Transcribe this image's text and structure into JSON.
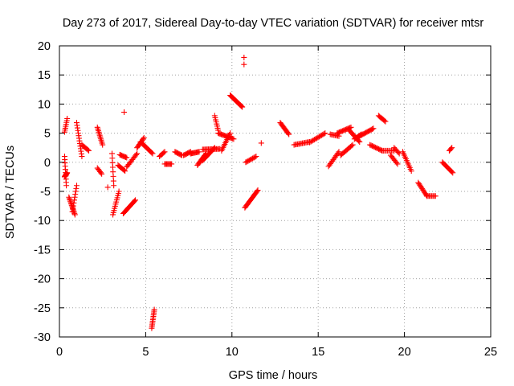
{
  "chart_data": {
    "type": "scatter",
    "title": "Day 273 of 2017, Sidereal Day-to-day VTEC variation (SDTVAR) for receiver mtsr",
    "xlabel": "GPS time / hours",
    "ylabel": "SDTVAR / TECUs",
    "xlim": [
      0,
      25
    ],
    "ylim": [
      -30,
      20
    ],
    "xticks": [
      0,
      5,
      10,
      15,
      20,
      25
    ],
    "yticks": [
      20,
      15,
      10,
      5,
      0,
      -5,
      -10,
      -15,
      -20,
      -25,
      -30
    ],
    "grid": true,
    "marker": "+",
    "color": "#ff0000",
    "segments": [
      {
        "x0": 0.3,
        "y0": 5.2,
        "x1": 0.45,
        "y1": 7.5,
        "n": 8
      },
      {
        "x0": 0.3,
        "y0": -2.5,
        "x1": 0.45,
        "y1": -1.8,
        "n": 12
      },
      {
        "x0": 0.3,
        "y0": 1.0,
        "x1": 0.4,
        "y1": -4.0,
        "n": 10
      },
      {
        "x0": 0.55,
        "y0": -6.0,
        "x1": 0.9,
        "y1": -9.0,
        "n": 14
      },
      {
        "x0": 0.75,
        "y0": -8.5,
        "x1": 1.0,
        "y1": -4.0,
        "n": 10
      },
      {
        "x0": 1.0,
        "y0": 6.8,
        "x1": 1.3,
        "y1": 1.0,
        "n": 14
      },
      {
        "x0": 1.3,
        "y0": 3.0,
        "x1": 1.7,
        "y1": 2.0,
        "n": 8
      },
      {
        "x0": 2.2,
        "y0": 6.0,
        "x1": 2.5,
        "y1": 3.0,
        "n": 12
      },
      {
        "x0": 2.2,
        "y0": -1.0,
        "x1": 2.45,
        "y1": -2.0,
        "n": 6
      },
      {
        "x0": 2.8,
        "y0": -4.3,
        "x1": 2.8,
        "y1": -4.3,
        "n": 1
      },
      {
        "x0": 3.05,
        "y0": 1.5,
        "x1": 3.15,
        "y1": -4.0,
        "n": 8
      },
      {
        "x0": 3.1,
        "y0": -9.0,
        "x1": 3.45,
        "y1": -5.0,
        "n": 12
      },
      {
        "x0": 3.4,
        "y0": -0.5,
        "x1": 3.8,
        "y1": -1.5,
        "n": 8
      },
      {
        "x0": 3.5,
        "y0": 1.3,
        "x1": 3.9,
        "y1": 0.8,
        "n": 8
      },
      {
        "x0": 3.75,
        "y0": 8.6,
        "x1": 3.75,
        "y1": 8.6,
        "n": 1
      },
      {
        "x0": 3.7,
        "y0": -8.8,
        "x1": 4.4,
        "y1": -6.5,
        "n": 16
      },
      {
        "x0": 3.9,
        "y0": -0.8,
        "x1": 4.5,
        "y1": 1.5,
        "n": 12
      },
      {
        "x0": 4.5,
        "y0": 2.5,
        "x1": 4.9,
        "y1": 4.2,
        "n": 10
      },
      {
        "x0": 4.7,
        "y0": 3.5,
        "x1": 5.4,
        "y1": 1.5,
        "n": 14
      },
      {
        "x0": 5.35,
        "y0": -28.5,
        "x1": 5.5,
        "y1": -25.3,
        "n": 12
      },
      {
        "x0": 5.8,
        "y0": 1.0,
        "x1": 6.1,
        "y1": 1.8,
        "n": 6
      },
      {
        "x0": 6.1,
        "y0": -0.3,
        "x1": 6.5,
        "y1": -0.3,
        "n": 8
      },
      {
        "x0": 6.7,
        "y0": 1.8,
        "x1": 7.1,
        "y1": 1.2,
        "n": 8
      },
      {
        "x0": 7.2,
        "y0": 1.2,
        "x1": 7.6,
        "y1": 1.8,
        "n": 8
      },
      {
        "x0": 7.6,
        "y0": 1.5,
        "x1": 8.1,
        "y1": 1.8,
        "n": 10
      },
      {
        "x0": 8.0,
        "y0": -0.5,
        "x1": 8.5,
        "y1": 1.5,
        "n": 12
      },
      {
        "x0": 8.3,
        "y0": 0.3,
        "x1": 9.0,
        "y1": 2.5,
        "n": 16
      },
      {
        "x0": 8.3,
        "y0": 2.2,
        "x1": 9.3,
        "y1": 2.3,
        "n": 16
      },
      {
        "x0": 9.0,
        "y0": 8.0,
        "x1": 9.2,
        "y1": 5.5,
        "n": 8
      },
      {
        "x0": 9.2,
        "y0": 5.0,
        "x1": 10.1,
        "y1": 4.0,
        "n": 16
      },
      {
        "x0": 9.4,
        "y0": 2.0,
        "x1": 9.9,
        "y1": 5.0,
        "n": 12
      },
      {
        "x0": 9.9,
        "y0": 11.5,
        "x1": 10.6,
        "y1": 9.5,
        "n": 20
      },
      {
        "x0": 10.7,
        "y0": 18.0,
        "x1": 10.7,
        "y1": 18.0,
        "n": 1
      },
      {
        "x0": 10.7,
        "y0": 16.8,
        "x1": 10.7,
        "y1": 16.8,
        "n": 1
      },
      {
        "x0": 10.75,
        "y0": -7.8,
        "x1": 11.5,
        "y1": -4.8,
        "n": 18
      },
      {
        "x0": 10.8,
        "y0": 0.0,
        "x1": 11.4,
        "y1": 1.0,
        "n": 10
      },
      {
        "x0": 11.7,
        "y0": 3.3,
        "x1": 11.7,
        "y1": 3.3,
        "n": 1
      },
      {
        "x0": 12.8,
        "y0": 6.8,
        "x1": 13.3,
        "y1": 4.8,
        "n": 12
      },
      {
        "x0": 13.6,
        "y0": 3.0,
        "x1": 14.5,
        "y1": 3.5,
        "n": 14
      },
      {
        "x0": 14.5,
        "y0": 3.4,
        "x1": 15.4,
        "y1": 5.0,
        "n": 14
      },
      {
        "x0": 15.6,
        "y0": -0.7,
        "x1": 16.2,
        "y1": 1.8,
        "n": 12
      },
      {
        "x0": 15.7,
        "y0": 4.8,
        "x1": 16.2,
        "y1": 4.5,
        "n": 8
      },
      {
        "x0": 16.1,
        "y0": 5.0,
        "x1": 16.9,
        "y1": 6.0,
        "n": 14
      },
      {
        "x0": 16.3,
        "y0": 1.2,
        "x1": 17.0,
        "y1": 3.0,
        "n": 12
      },
      {
        "x0": 16.8,
        "y0": 5.5,
        "x1": 17.4,
        "y1": 3.5,
        "n": 12
      },
      {
        "x0": 17.1,
        "y0": 4.0,
        "x1": 17.5,
        "y1": 4.8,
        "n": 8
      },
      {
        "x0": 17.4,
        "y0": 4.5,
        "x1": 18.2,
        "y1": 5.8,
        "n": 14
      },
      {
        "x0": 18.0,
        "y0": 3.0,
        "x1": 18.7,
        "y1": 2.0,
        "n": 12
      },
      {
        "x0": 18.5,
        "y0": 8.0,
        "x1": 18.9,
        "y1": 7.0,
        "n": 8
      },
      {
        "x0": 18.7,
        "y0": 2.0,
        "x1": 19.4,
        "y1": 2.0,
        "n": 10
      },
      {
        "x0": 19.2,
        "y0": 1.2,
        "x1": 19.6,
        "y1": -0.3,
        "n": 8
      },
      {
        "x0": 19.4,
        "y0": 2.5,
        "x1": 19.7,
        "y1": 1.5,
        "n": 6
      },
      {
        "x0": 19.9,
        "y0": 1.8,
        "x1": 20.4,
        "y1": -1.5,
        "n": 12
      },
      {
        "x0": 20.8,
        "y0": -3.5,
        "x1": 21.3,
        "y1": -5.8,
        "n": 12
      },
      {
        "x0": 21.3,
        "y0": -5.8,
        "x1": 21.8,
        "y1": -5.8,
        "n": 8
      },
      {
        "x0": 22.2,
        "y0": 0.0,
        "x1": 22.8,
        "y1": -1.8,
        "n": 12
      },
      {
        "x0": 22.6,
        "y0": 2.0,
        "x1": 22.75,
        "y1": 2.5,
        "n": 4
      }
    ]
  }
}
